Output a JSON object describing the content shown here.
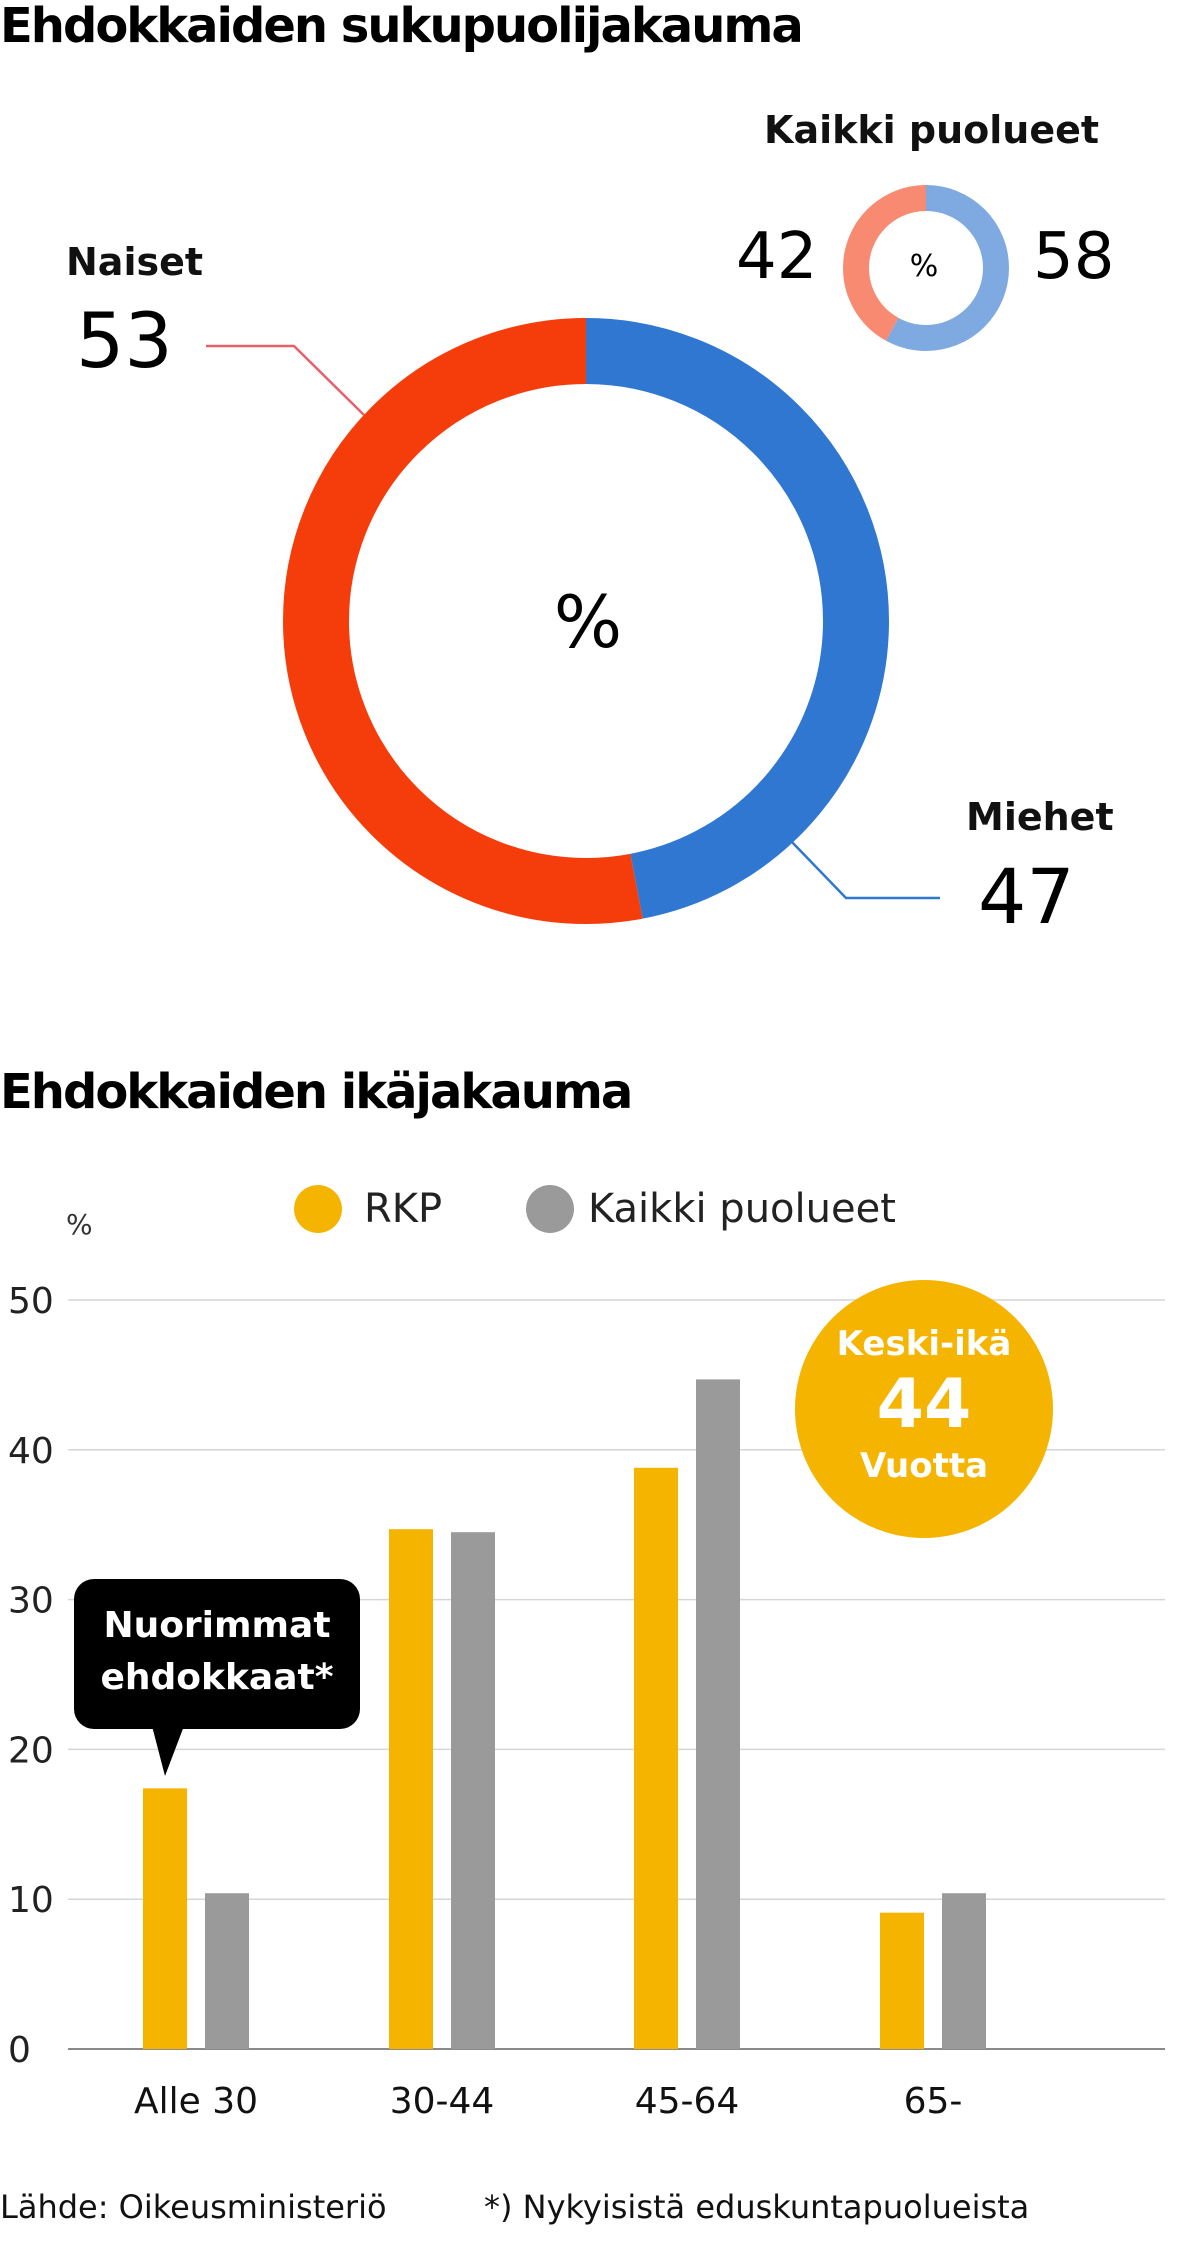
{
  "gender": {
    "title": "Ehdokkaiden sukupuolijakauma",
    "center_symbol": "%",
    "women_label": "Naiset",
    "women_value": "53",
    "men_label": "Miehet",
    "men_value": "47",
    "all_parties_label": "Kaikki puolueet",
    "all_women_value": "42",
    "all_men_value": "58",
    "colors": {
      "women": "#f53d0c",
      "men": "#2f77d0",
      "women_all": "#f78a70",
      "men_all": "#7ea9e1"
    }
  },
  "age": {
    "title": "Ehdokkaiden ikäjakauma",
    "unit": "%",
    "legend": {
      "rkp": "RKP",
      "all": "Kaikki puolueet"
    },
    "callout": {
      "line1": "Nuorimmat",
      "line2": "ehdokkaat*"
    },
    "average": {
      "label": "Keski-ikä",
      "value": "44",
      "unit": "Vuotta"
    },
    "colors": {
      "rkp": "#f5b400",
      "all": "#9a9a9a",
      "avg": "#f5b400"
    }
  },
  "footer": {
    "source": "Lähde: Oikeusministeriö",
    "note": "*) Nykyisistä eduskuntapuolueista"
  },
  "chart_data": [
    {
      "type": "pie",
      "title": "Ehdokkaiden sukupuolijakauma",
      "categories": [
        "Naiset",
        "Miehet"
      ],
      "values": [
        53,
        47
      ],
      "unit": "%"
    },
    {
      "type": "pie",
      "title": "Kaikki puolueet",
      "categories": [
        "Naiset",
        "Miehet"
      ],
      "values": [
        42,
        58
      ],
      "unit": "%"
    },
    {
      "type": "bar",
      "title": "Ehdokkaiden ikäjakauma",
      "ylabel": "%",
      "categories": [
        "Alle 30",
        "30-44",
        "45-64",
        "65-"
      ],
      "series": [
        {
          "name": "RKP",
          "values": [
            17.4,
            34.7,
            38.8,
            9.1
          ]
        },
        {
          "name": "Kaikki puolueet",
          "values": [
            10.4,
            34.5,
            44.7,
            10.4
          ]
        }
      ],
      "ylim": [
        0,
        50
      ],
      "yticks": [
        0,
        10,
        20,
        30,
        40,
        50
      ],
      "grid": true,
      "legend_position": "top"
    }
  ]
}
